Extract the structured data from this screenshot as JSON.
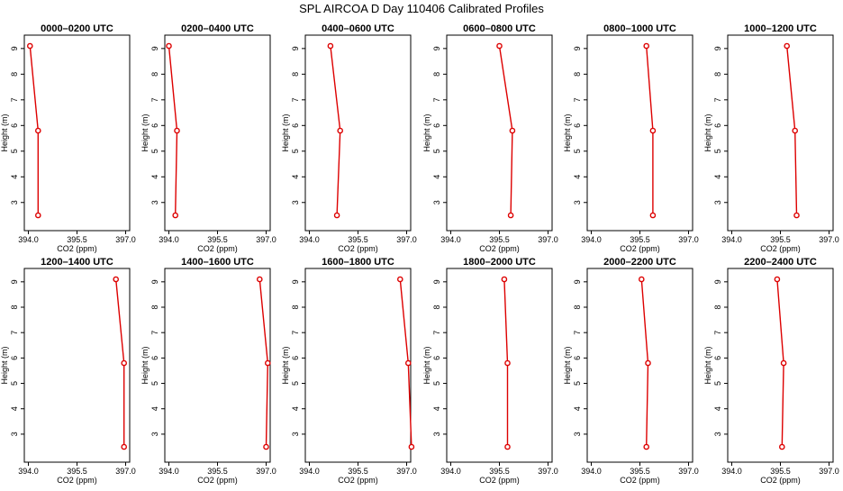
{
  "title": "SPL AIRCOA D  Day 110406  Calibrated Profiles",
  "colors": {
    "series": "#dd0000",
    "axis": "#000000"
  },
  "chart_data": [
    {
      "type": "line",
      "title": "0000–0200 UTC",
      "xlabel": "CO2 (ppm)",
      "ylabel": "Height (m)",
      "xlim": [
        394.0,
        397.0
      ],
      "ylim": [
        2.5,
        9.1
      ],
      "xticks": [
        "394.0",
        "395.5",
        "397.0"
      ],
      "yticks": [
        "3",
        "4",
        "5",
        "6",
        "7",
        "8",
        "9"
      ],
      "series": [
        {
          "x": [
            394.05,
            394.3,
            394.3
          ],
          "y": [
            9.1,
            5.8,
            2.5
          ]
        }
      ]
    },
    {
      "type": "line",
      "title": "0200–0400 UTC",
      "xlabel": "CO2 (ppm)",
      "ylabel": "Height (m)",
      "xlim": [
        394.0,
        397.0
      ],
      "ylim": [
        2.5,
        9.1
      ],
      "xticks": [
        "394.0",
        "395.5",
        "397.0"
      ],
      "yticks": [
        "3",
        "4",
        "5",
        "6",
        "7",
        "8",
        "9"
      ],
      "series": [
        {
          "x": [
            394.0,
            394.25,
            394.2
          ],
          "y": [
            9.1,
            5.8,
            2.5
          ]
        }
      ]
    },
    {
      "type": "line",
      "title": "0400–0600 UTC",
      "xlabel": "CO2 (ppm)",
      "ylabel": "Height (m)",
      "xlim": [
        394.0,
        397.0
      ],
      "ylim": [
        2.5,
        9.1
      ],
      "xticks": [
        "394.0",
        "395.5",
        "397.0"
      ],
      "yticks": [
        "3",
        "4",
        "5",
        "6",
        "7",
        "8",
        "9"
      ],
      "series": [
        {
          "x": [
            394.65,
            394.95,
            394.85
          ],
          "y": [
            9.1,
            5.8,
            2.5
          ]
        }
      ]
    },
    {
      "type": "line",
      "title": "0600–0800 UTC",
      "xlabel": "CO2 (ppm)",
      "ylabel": "Height (m)",
      "xlim": [
        394.0,
        397.0
      ],
      "ylim": [
        2.5,
        9.1
      ],
      "xticks": [
        "394.0",
        "395.5",
        "397.0"
      ],
      "yticks": [
        "3",
        "4",
        "5",
        "6",
        "7",
        "8",
        "9"
      ],
      "series": [
        {
          "x": [
            395.5,
            395.9,
            395.85
          ],
          "y": [
            9.1,
            5.8,
            2.5
          ]
        }
      ]
    },
    {
      "type": "line",
      "title": "0800–1000 UTC",
      "xlabel": "CO2 (ppm)",
      "ylabel": "Height (m)",
      "xlim": [
        394.0,
        397.0
      ],
      "ylim": [
        2.5,
        9.1
      ],
      "xticks": [
        "394.0",
        "395.5",
        "397.0"
      ],
      "yticks": [
        "3",
        "4",
        "5",
        "6",
        "7",
        "8",
        "9"
      ],
      "series": [
        {
          "x": [
            395.7,
            395.9,
            395.9
          ],
          "y": [
            9.1,
            5.8,
            2.5
          ]
        }
      ]
    },
    {
      "type": "line",
      "title": "1000–1200 UTC",
      "xlabel": "CO2 (ppm)",
      "ylabel": "Height (m)",
      "xlim": [
        394.0,
        397.0
      ],
      "ylim": [
        2.5,
        9.1
      ],
      "xticks": [
        "394.0",
        "395.5",
        "397.0"
      ],
      "yticks": [
        "3",
        "4",
        "5",
        "6",
        "7",
        "8",
        "9"
      ],
      "series": [
        {
          "x": [
            395.7,
            395.95,
            396.0
          ],
          "y": [
            9.1,
            5.8,
            2.5
          ]
        }
      ]
    },
    {
      "type": "line",
      "title": "1200–1400 UTC",
      "xlabel": "CO2 (ppm)",
      "ylabel": "Height (m)",
      "xlim": [
        394.0,
        397.0
      ],
      "ylim": [
        2.5,
        9.1
      ],
      "xticks": [
        "394.0",
        "395.5",
        "397.0"
      ],
      "yticks": [
        "3",
        "4",
        "5",
        "6",
        "7",
        "8",
        "9"
      ],
      "series": [
        {
          "x": [
            396.7,
            396.95,
            396.95
          ],
          "y": [
            9.1,
            5.8,
            2.5
          ]
        }
      ]
    },
    {
      "type": "line",
      "title": "1400–1600 UTC",
      "xlabel": "CO2 (ppm)",
      "ylabel": "Height (m)",
      "xlim": [
        394.0,
        397.0
      ],
      "ylim": [
        2.5,
        9.1
      ],
      "xticks": [
        "394.0",
        "395.5",
        "397.0"
      ],
      "yticks": [
        "3",
        "4",
        "5",
        "6",
        "7",
        "8",
        "9"
      ],
      "series": [
        {
          "x": [
            396.8,
            397.05,
            397.0
          ],
          "y": [
            9.1,
            5.8,
            2.5
          ]
        }
      ]
    },
    {
      "type": "line",
      "title": "1600–1800 UTC",
      "xlabel": "CO2 (ppm)",
      "ylabel": "Height (m)",
      "xlim": [
        394.0,
        397.0
      ],
      "ylim": [
        2.5,
        9.1
      ],
      "xticks": [
        "394.0",
        "395.5",
        "397.0"
      ],
      "yticks": [
        "3",
        "4",
        "5",
        "6",
        "7",
        "8",
        "9"
      ],
      "series": [
        {
          "x": [
            396.8,
            397.05,
            397.15
          ],
          "y": [
            9.1,
            5.8,
            2.5
          ]
        }
      ]
    },
    {
      "type": "line",
      "title": "1800–2000 UTC",
      "xlabel": "CO2 (ppm)",
      "ylabel": "Height (m)",
      "xlim": [
        394.0,
        397.0
      ],
      "ylim": [
        2.5,
        9.1
      ],
      "xticks": [
        "394.0",
        "395.5",
        "397.0"
      ],
      "yticks": [
        "3",
        "4",
        "5",
        "6",
        "7",
        "8",
        "9"
      ],
      "series": [
        {
          "x": [
            395.65,
            395.75,
            395.75
          ],
          "y": [
            9.1,
            5.8,
            2.5
          ]
        }
      ]
    },
    {
      "type": "line",
      "title": "2000–2200 UTC",
      "xlabel": "CO2 (ppm)",
      "ylabel": "Height (m)",
      "xlim": [
        394.0,
        397.0
      ],
      "ylim": [
        2.5,
        9.1
      ],
      "xticks": [
        "394.0",
        "395.5",
        "397.0"
      ],
      "yticks": [
        "3",
        "4",
        "5",
        "6",
        "7",
        "8",
        "9"
      ],
      "series": [
        {
          "x": [
            395.55,
            395.75,
            395.7
          ],
          "y": [
            9.1,
            5.8,
            2.5
          ]
        }
      ]
    },
    {
      "type": "line",
      "title": "2200–2400 UTC",
      "xlabel": "CO2 (ppm)",
      "ylabel": "Height (m)",
      "xlim": [
        394.0,
        397.0
      ],
      "ylim": [
        2.5,
        9.1
      ],
      "xticks": [
        "394.0",
        "395.5",
        "397.0"
      ],
      "yticks": [
        "3",
        "4",
        "5",
        "6",
        "7",
        "8",
        "9"
      ],
      "series": [
        {
          "x": [
            395.4,
            395.6,
            395.55
          ],
          "y": [
            9.1,
            5.8,
            2.5
          ]
        }
      ]
    }
  ]
}
